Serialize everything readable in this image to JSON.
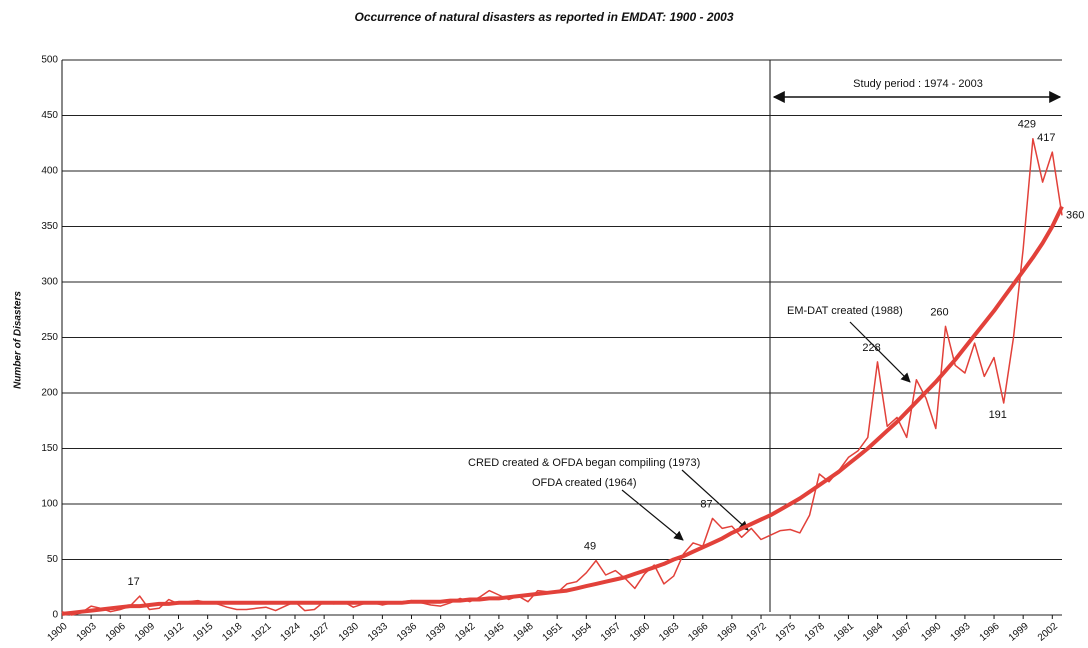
{
  "chart_data": {
    "type": "line",
    "title": "Occurrence of natural disasters as reported in EMDAT: 1900 - 2003",
    "y_label": "Number of Disasters",
    "x": [
      1900,
      1901,
      1902,
      1903,
      1904,
      1905,
      1906,
      1907,
      1908,
      1909,
      1910,
      1911,
      1912,
      1913,
      1914,
      1915,
      1916,
      1917,
      1918,
      1919,
      1920,
      1921,
      1922,
      1923,
      1924,
      1925,
      1926,
      1927,
      1928,
      1929,
      1930,
      1931,
      1932,
      1933,
      1934,
      1935,
      1936,
      1937,
      1938,
      1939,
      1940,
      1941,
      1942,
      1943,
      1944,
      1945,
      1946,
      1947,
      1948,
      1949,
      1950,
      1951,
      1952,
      1953,
      1954,
      1955,
      1956,
      1957,
      1958,
      1959,
      1960,
      1961,
      1962,
      1963,
      1964,
      1965,
      1966,
      1967,
      1968,
      1969,
      1970,
      1971,
      1972,
      1973,
      1974,
      1975,
      1976,
      1977,
      1978,
      1979,
      1980,
      1981,
      1982,
      1983,
      1984,
      1985,
      1986,
      1987,
      1988,
      1989,
      1990,
      1991,
      1992,
      1993,
      1994,
      1995,
      1996,
      1997,
      1998,
      1999,
      2000,
      2001,
      2002,
      2003
    ],
    "series": [
      {
        "color": "#e2413a",
        "width": 1.5,
        "labeled_points": [
          8,
          55,
          67,
          84,
          91,
          97,
          100,
          102,
          103
        ],
        "values": [
          3,
          0,
          2,
          8,
          6,
          3,
          5,
          8,
          17,
          5,
          6,
          14,
          10,
          12,
          13,
          11,
          10,
          7,
          5,
          5,
          6,
          7,
          4,
          8,
          12,
          4,
          5,
          12,
          10,
          12,
          7,
          10,
          11,
          9,
          11,
          12,
          13,
          11,
          9,
          8,
          11,
          15,
          12,
          16,
          22,
          18,
          14,
          17,
          12,
          22,
          21,
          20,
          28,
          30,
          38,
          49,
          36,
          40,
          33,
          24,
          37,
          45,
          28,
          35,
          55,
          65,
          62,
          87,
          78,
          80,
          70,
          78,
          68,
          72,
          76,
          77,
          74,
          90,
          127,
          120,
          130,
          142,
          148,
          160,
          228,
          170,
          178,
          160,
          212,
          195,
          168,
          260,
          225,
          218,
          245,
          215,
          232,
          191,
          250,
          330,
          429,
          390,
          417,
          360
        ]
      },
      {
        "color": "#e2413a",
        "width": 4,
        "values": [
          1,
          2,
          3,
          4,
          5,
          6,
          7,
          8,
          8,
          9,
          10,
          10,
          11,
          11,
          11,
          11,
          11,
          11,
          11,
          11,
          11,
          11,
          11,
          11,
          11,
          11,
          11,
          11,
          11,
          11,
          11,
          11,
          11,
          11,
          11,
          11,
          12,
          12,
          12,
          12,
          13,
          13,
          14,
          14,
          15,
          15,
          16,
          17,
          18,
          19,
          20,
          21,
          22,
          24,
          26,
          28,
          30,
          32,
          34,
          37,
          40,
          43,
          46,
          50,
          53,
          57,
          61,
          65,
          69,
          74,
          78,
          82,
          86,
          90,
          95,
          100,
          105,
          111,
          117,
          123,
          129,
          136,
          143,
          150,
          158,
          166,
          174,
          183,
          192,
          201,
          210,
          220,
          230,
          241,
          252,
          263,
          274,
          286,
          298,
          310,
          322,
          335,
          350,
          368
        ]
      }
    ],
    "xlim": [
      1900,
      2003
    ],
    "xticks": [
      1900,
      1903,
      1906,
      1909,
      1912,
      1915,
      1918,
      1921,
      1924,
      1927,
      1930,
      1933,
      1936,
      1939,
      1942,
      1945,
      1948,
      1951,
      1954,
      1957,
      1960,
      1963,
      1966,
      1969,
      1972,
      1975,
      1978,
      1981,
      1984,
      1987,
      1990,
      1993,
      1996,
      1999,
      2002
    ],
    "ylim": [
      0,
      500
    ],
    "yticks": [
      0,
      50,
      100,
      150,
      200,
      250,
      300,
      350,
      400,
      450,
      500
    ],
    "grid": true,
    "annotations": [
      "Study period : 1974 - 2003",
      "EM-DAT created (1988)",
      "CRED created & OFDA began compiling (1973)",
      "OFDA created (1964)"
    ]
  }
}
